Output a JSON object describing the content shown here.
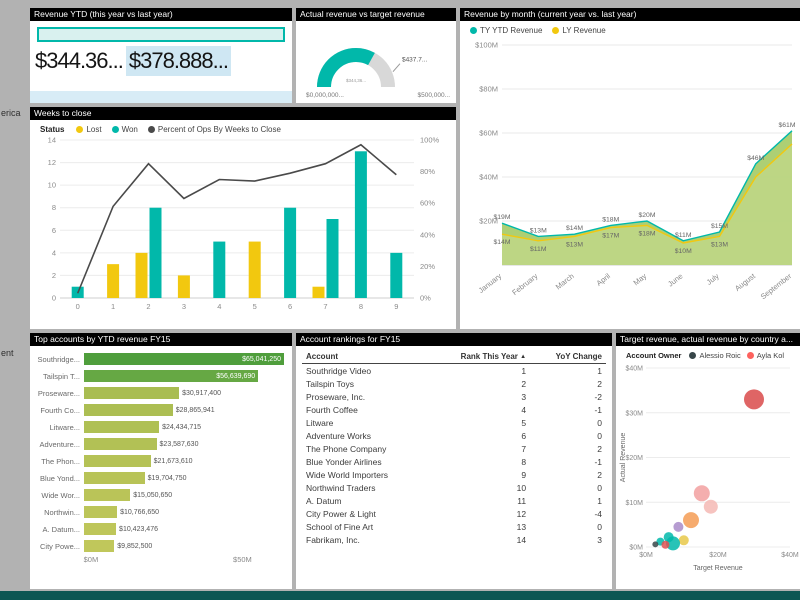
{
  "page": {
    "background": "#b2b2b2",
    "bottom_bar_color": "#0d5653"
  },
  "left_fragments": {
    "top": "erica",
    "bottom": "ent"
  },
  "panels": {
    "revenue_ytd": {
      "title": "Revenue YTD (this year vs last year)",
      "value_ty": "$344.36...",
      "value_ly": "$378.888..."
    },
    "gauge": {
      "title": "Actual revenue vs target revenue"
    },
    "monthly": {
      "title": "Revenue by month (current year vs. last year)"
    },
    "weeks": {
      "title": "Weeks to close"
    },
    "top_accounts": {
      "title": "Top accounts by YTD revenue FY15"
    },
    "rankings": {
      "title": "Account rankings for FY15"
    },
    "scatter": {
      "title": "Target revenue, actual revenue by country a..."
    }
  },
  "chart_data": [
    {
      "id": "gauge",
      "type": "gauge",
      "value_fraction": 0.66,
      "target_fraction": 0.875,
      "callout": "$437.7...",
      "center_label": "$344,36...",
      "min_label": "$0,000,000...",
      "max_label": "$500,000...",
      "color": "#01b8aa",
      "track": "#d8d8d8"
    },
    {
      "id": "monthly",
      "type": "area",
      "x": [
        "January",
        "February",
        "March",
        "April",
        "May",
        "June",
        "July",
        "August",
        "September"
      ],
      "series": [
        {
          "name": "TY YTD Revenue",
          "color": "#01b8aa",
          "fill": "#a9cc6d",
          "values": [
            19,
            13,
            14,
            18,
            20,
            11,
            15,
            46,
            61
          ],
          "labels": [
            "$19M",
            "$13M",
            "$14M",
            "$18M",
            "$20M",
            "$11M",
            "$15M",
            "$46M",
            "$61M"
          ]
        },
        {
          "name": "LY Revenue",
          "color": "#f2c80f",
          "fill": "#c3d98c",
          "values": [
            14,
            11,
            13,
            17,
            18,
            10,
            13,
            40,
            55
          ],
          "labels": [
            "$14M",
            "$11M",
            "$13M",
            "$17M",
            "$18M",
            "$10M",
            "$13M",
            "",
            ""
          ]
        }
      ],
      "ymax": 100,
      "yticks": [
        {
          "v": 100,
          "label": "$100M"
        },
        {
          "v": 80,
          "label": "$80M"
        },
        {
          "v": 60,
          "label": "$60M"
        },
        {
          "v": 40,
          "label": "$40M"
        },
        {
          "v": 20,
          "label": "$20M"
        }
      ],
      "grid": true,
      "legend_position": "top"
    },
    {
      "id": "weeks",
      "type": "bar",
      "legend_title": "Status",
      "categories": [
        "0",
        "1",
        "2",
        "3",
        "4",
        "5",
        "6",
        "7",
        "8",
        "9"
      ],
      "series": [
        {
          "name": "Lost",
          "color": "#f2c80f",
          "values": [
            0,
            3,
            4,
            2,
            0,
            5,
            0,
            1,
            0,
            0
          ]
        },
        {
          "name": "Won",
          "color": "#01b8aa",
          "values": [
            1,
            0,
            8,
            0,
            5,
            0,
            8,
            7,
            13,
            4
          ]
        }
      ],
      "line": {
        "name": "Percent of Ops By Weeks to Close",
        "color": "#4a4a4a",
        "values": [
          3,
          58,
          85,
          63,
          75,
          74,
          79,
          85,
          97,
          78
        ]
      },
      "ymax": 14,
      "yticks": [
        0,
        2,
        4,
        6,
        8,
        10,
        12,
        14
      ],
      "y2ticks": [
        "0%",
        "20%",
        "40%",
        "60%",
        "80%",
        "100%"
      ]
    },
    {
      "id": "top_accounts",
      "type": "bar",
      "orientation": "horizontal",
      "categories": [
        "Southridge...",
        "Tailspin T...",
        "Proseware...",
        "Fourth Co...",
        "Litware...",
        "Adventure...",
        "The Phon...",
        "Blue Yond...",
        "Wide Wor...",
        "Northwin...",
        "A. Datum...",
        "City Powe..."
      ],
      "values": [
        65041250,
        56639690,
        30917400,
        28865941,
        24434715,
        23587630,
        21673610,
        19704750,
        15050650,
        10766650,
        10423476,
        9852500
      ],
      "value_labels": [
        "$65,041,250",
        "$56,639,690",
        "$30,917,400",
        "$28,865,941",
        "$24,434,715",
        "$23,587,630",
        "$21,673,610",
        "$19,704,750",
        "$15,050,650",
        "$10,766,650",
        "$10,423,476",
        "$9,852,500"
      ],
      "colors": [
        "#4f9e3c",
        "#66a844",
        "#a9bd52",
        "#acbe53",
        "#afc054",
        "#b2c155",
        "#b5c256",
        "#b8c357",
        "#bac458",
        "#bcc559",
        "#bec65a",
        "#c0c75b"
      ],
      "inside_label_count": 2,
      "xticks": [
        "$0M",
        "$50M"
      ],
      "tick50_value": 50000000
    },
    {
      "id": "rankings",
      "type": "table",
      "columns": [
        "Account",
        "Rank This Year",
        "YoY Change"
      ],
      "sort_icon": "▲",
      "rows": [
        [
          "Southridge Video",
          "1",
          "1"
        ],
        [
          "Tailspin Toys",
          "2",
          "2"
        ],
        [
          "Proseware, Inc.",
          "3",
          "-2"
        ],
        [
          "Fourth Coffee",
          "4",
          "-1"
        ],
        [
          "Litware",
          "5",
          "0"
        ],
        [
          "Adventure Works",
          "6",
          "0"
        ],
        [
          "The Phone Company",
          "7",
          "2"
        ],
        [
          "Blue Yonder Airlines",
          "8",
          "-1"
        ],
        [
          "Wide World Importers",
          "9",
          "2"
        ],
        [
          "Northwind Traders",
          "10",
          "0"
        ],
        [
          "A. Datum",
          "11",
          "1"
        ],
        [
          "City Power & Light",
          "12",
          "-4"
        ],
        [
          "School of Fine Art",
          "13",
          "0"
        ],
        [
          "Fabrikam, Inc.",
          "14",
          "3"
        ]
      ]
    },
    {
      "id": "scatter",
      "type": "scatter",
      "legend_title": "Account Owner",
      "legend": [
        {
          "name": "Alessio Roic",
          "color": "#374649"
        },
        {
          "name": "Ayla Kol",
          "color": "#fd625e"
        }
      ],
      "xlabel": "Target Revenue",
      "ylabel": "Actual Revenue",
      "xmax": 40,
      "ymax": 40,
      "xticks": [
        {
          "v": 0,
          "label": "$0M"
        },
        {
          "v": 20,
          "label": "$20M"
        },
        {
          "v": 40,
          "label": "$40M"
        }
      ],
      "yticks": [
        {
          "v": 0,
          "label": "$0M"
        },
        {
          "v": 10,
          "label": "$10M"
        },
        {
          "v": 20,
          "label": "$20M"
        },
        {
          "v": 30,
          "label": "$30M"
        },
        {
          "v": 40,
          "label": "$40M"
        }
      ],
      "points": [
        {
          "x": 30,
          "y": 33,
          "r": 10,
          "color": "#d94a4a"
        },
        {
          "x": 15.5,
          "y": 12,
          "r": 8,
          "color": "#f2a0a0"
        },
        {
          "x": 18,
          "y": 9,
          "r": 7,
          "color": "#f4b8b4"
        },
        {
          "x": 12.5,
          "y": 6,
          "r": 8,
          "color": "#f59c55"
        },
        {
          "x": 9,
          "y": 4.5,
          "r": 5,
          "color": "#a98bc9"
        },
        {
          "x": 10.5,
          "y": 1.5,
          "r": 5,
          "color": "#e8c84a"
        },
        {
          "x": 6.3,
          "y": 2.2,
          "r": 5,
          "color": "#01b8aa"
        },
        {
          "x": 7.5,
          "y": 0.8,
          "r": 7,
          "color": "#01b8aa"
        },
        {
          "x": 4,
          "y": 1.2,
          "r": 4,
          "color": "#01b8aa"
        },
        {
          "x": 5.4,
          "y": 0.5,
          "r": 4,
          "color": "#e05252"
        },
        {
          "x": 2.6,
          "y": 0.6,
          "r": 3,
          "color": "#374649"
        }
      ]
    }
  ]
}
